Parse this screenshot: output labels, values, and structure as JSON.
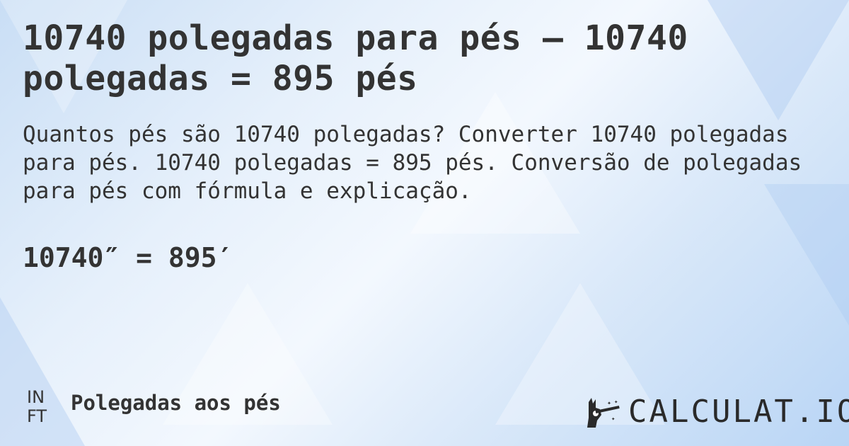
{
  "title": "10740 polegadas para pés — 10740 polegadas = 895 pés",
  "description": "Quantos pés são 10740 polegadas? Converter 10740 polegadas para pés. 10740 polegadas = 895 pés. Conversão de polegadas para pés com fórmula e explicação.",
  "result": "10740″ = 895′",
  "unit_badge": {
    "top": "IN",
    "bottom": "FT"
  },
  "category": "Polegadas aos pés",
  "logo": {
    "text": "CALCULAT.IO",
    "icon": "magic-hand-wand-icon"
  }
}
